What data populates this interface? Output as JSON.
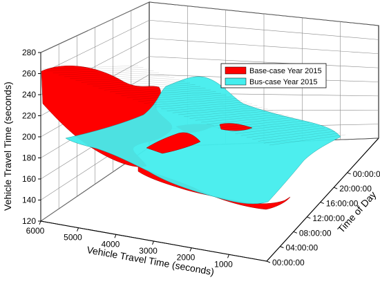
{
  "chart_data": {
    "type": "surface3d",
    "z_axis": {
      "label": "Vehicle Travel Time (seconds)",
      "ticks": [
        120,
        140,
        160,
        180,
        200,
        220,
        240,
        260,
        280
      ],
      "range": [
        120,
        280
      ]
    },
    "x_axis": {
      "label": "Vehicle Travel Time (seconds)",
      "ticks": [
        6000,
        5000,
        4000,
        3000,
        2000,
        1000
      ],
      "range": [
        6000,
        0
      ]
    },
    "y_axis": {
      "label": "Time of Day",
      "ticks": [
        "00:00:00",
        "04:00:00",
        "08:00:00",
        "12:00:00",
        "16:00:00",
        "20:00:00",
        "00:00:00"
      ]
    },
    "legend": {
      "placement": "top-right",
      "entries": [
        {
          "name": "Base-case Year 2015",
          "color": "#ff0000"
        },
        {
          "name": "Bus-case Year 2015",
          "color": "#44eeee"
        }
      ]
    },
    "series": [
      {
        "name": "Base-case Year 2015",
        "values_at_x": [
          {
            "x": 6000,
            "z": 262
          },
          {
            "x": 5000,
            "z": 258
          },
          {
            "x": 4000,
            "z": 215
          },
          {
            "x": 3000,
            "z": 195
          },
          {
            "x": 2000,
            "z": 175
          },
          {
            "x": 1000,
            "z": 165
          }
        ]
      },
      {
        "name": "Bus-case Year 2015",
        "values_at_x": [
          {
            "x": 6000,
            "z": 200
          },
          {
            "x": 5000,
            "z": 197
          },
          {
            "x": 4000,
            "z": 198
          },
          {
            "x": 3000,
            "z": 190
          },
          {
            "x": 2000,
            "z": 180
          },
          {
            "x": 1000,
            "z": 170
          }
        ]
      }
    ],
    "grid": true
  }
}
